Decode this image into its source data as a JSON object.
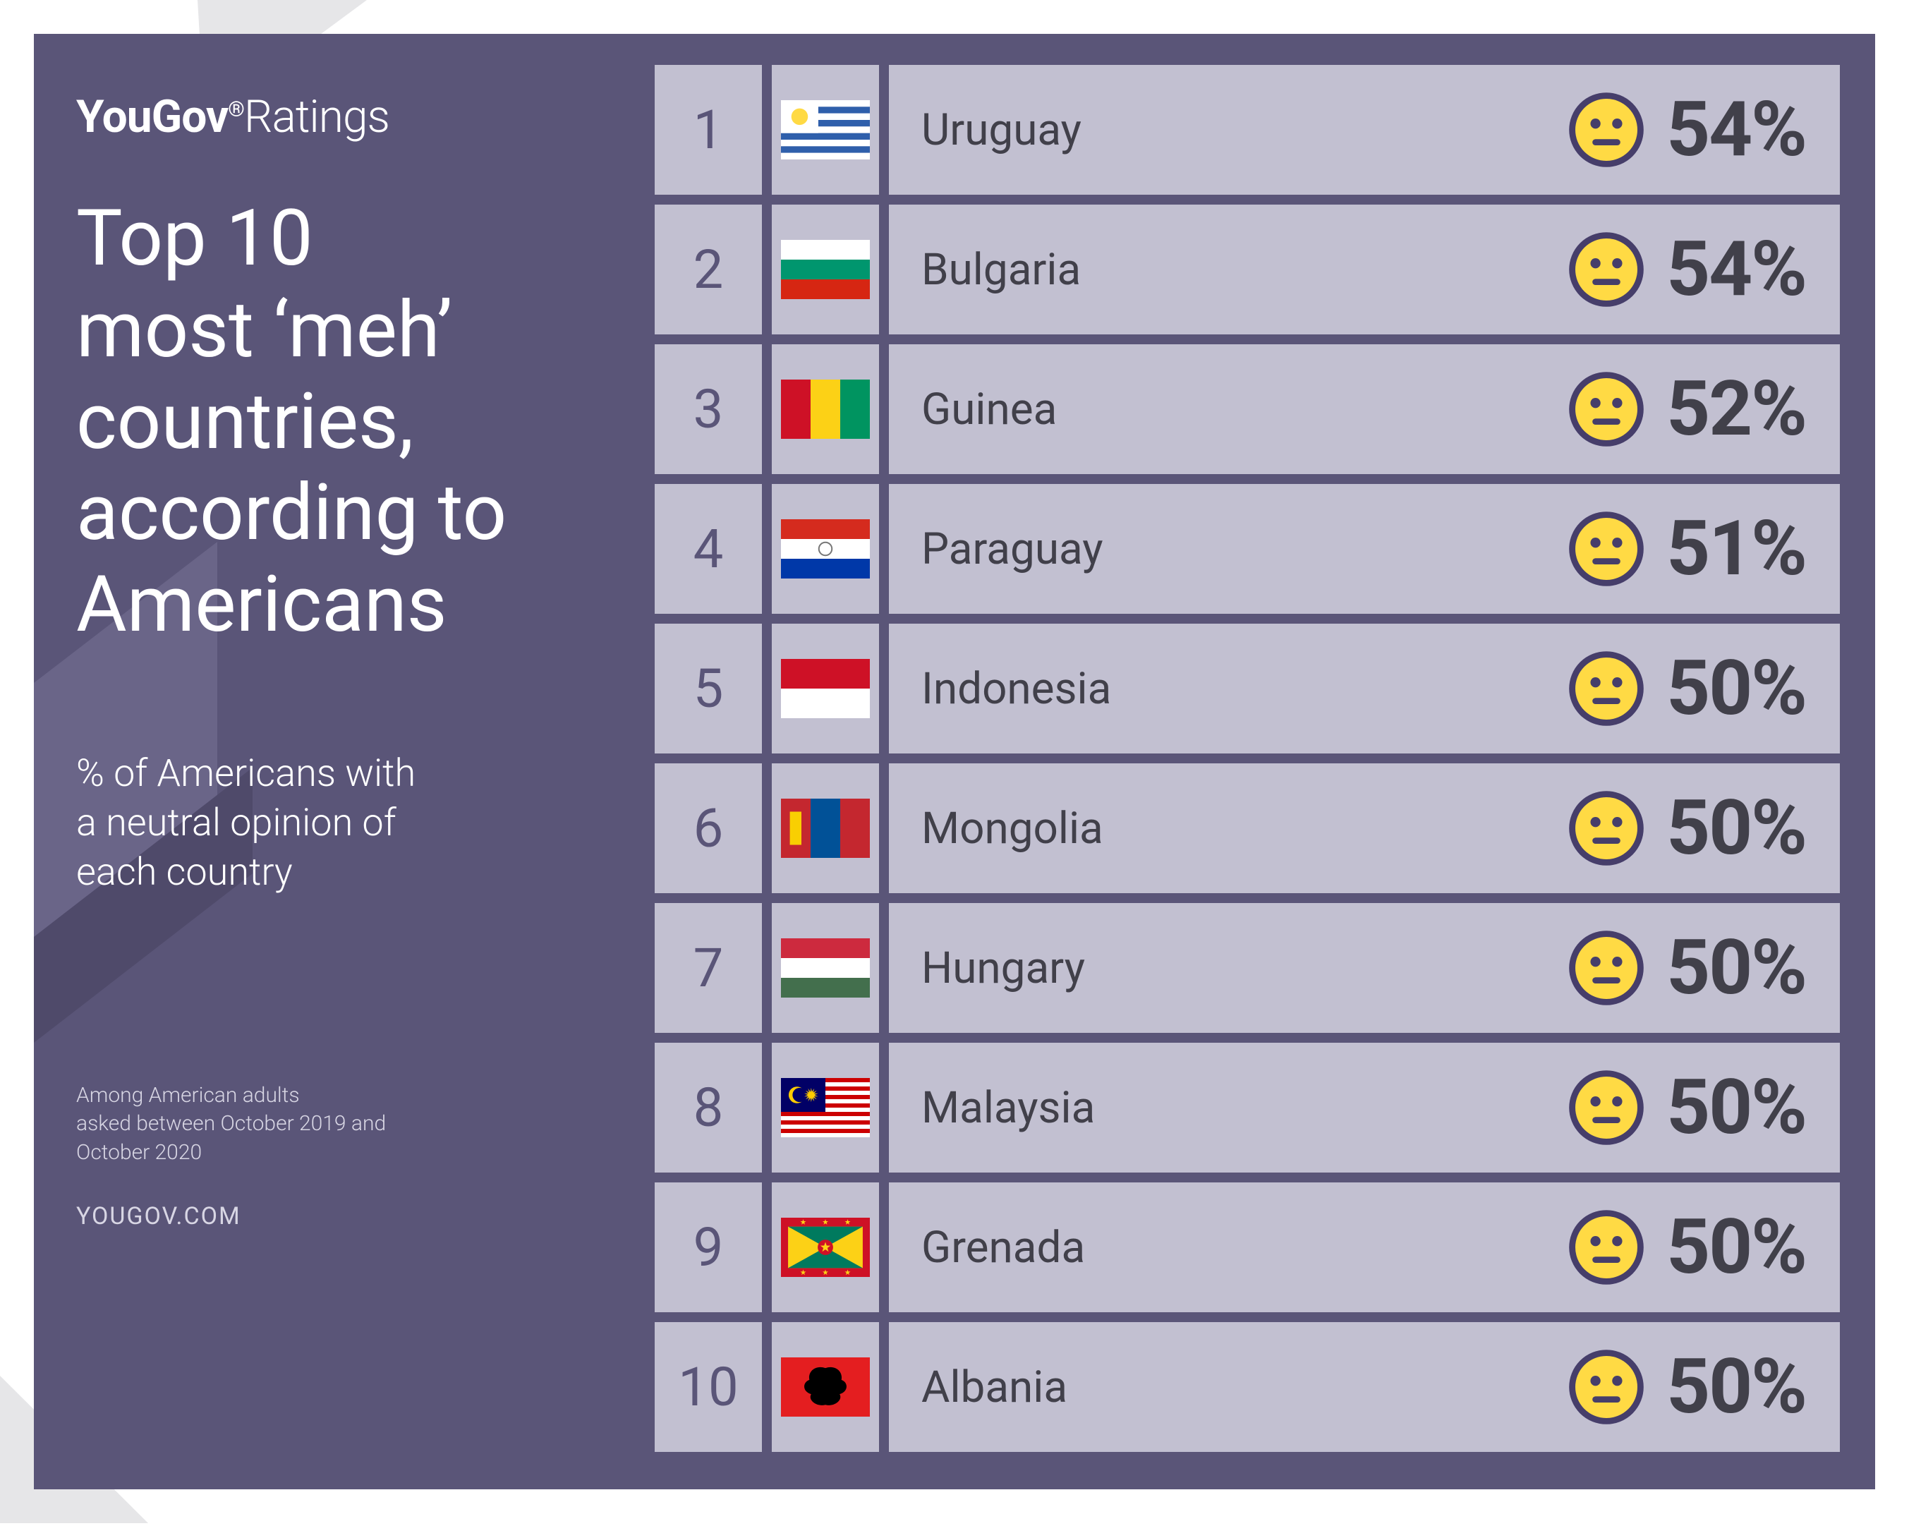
{
  "colors": {
    "panel_bg": "#5a5578",
    "cell_bg": "#c2c0d1",
    "text": "#ffffff",
    "muted_text": "#d8d6e4",
    "rank": "#5a5578",
    "country": "#41404a",
    "pct": "#41404a",
    "emoji_face": "#ffda44",
    "emoji_stroke": "#463e6a",
    "bg_shape": "#e6e6e8",
    "panel_shape_light": "#6a6588",
    "panel_shape_dark": "#4f4a6a"
  },
  "brand": {
    "bold": "YouGov",
    "light": "Ratings"
  },
  "title": "Top 10\nmost ‘meh’\ncountries,\naccording to\nAmericans",
  "subtitle": "% of Americans with\na neutral opinion of\neach country",
  "footnote": "Among American adults\nasked between October 2019 and\nOctober 2020",
  "site": "YOUGOV.COM",
  "rows": [
    {
      "rank": "1",
      "country": "Uruguay",
      "pct": "54%",
      "flag": "uruguay"
    },
    {
      "rank": "2",
      "country": "Bulgaria",
      "pct": "54%",
      "flag": "bulgaria"
    },
    {
      "rank": "3",
      "country": "Guinea",
      "pct": "52%",
      "flag": "guinea"
    },
    {
      "rank": "4",
      "country": "Paraguay",
      "pct": "51%",
      "flag": "paraguay"
    },
    {
      "rank": "5",
      "country": "Indonesia",
      "pct": "50%",
      "flag": "indonesia"
    },
    {
      "rank": "6",
      "country": "Mongolia",
      "pct": "50%",
      "flag": "mongolia"
    },
    {
      "rank": "7",
      "country": "Hungary",
      "pct": "50%",
      "flag": "hungary"
    },
    {
      "rank": "8",
      "country": "Malaysia",
      "pct": "50%",
      "flag": "malaysia"
    },
    {
      "rank": "9",
      "country": "Grenada",
      "pct": "50%",
      "flag": "grenada"
    },
    {
      "rank": "10",
      "country": "Albania",
      "pct": "50%",
      "flag": "albania"
    }
  ]
}
